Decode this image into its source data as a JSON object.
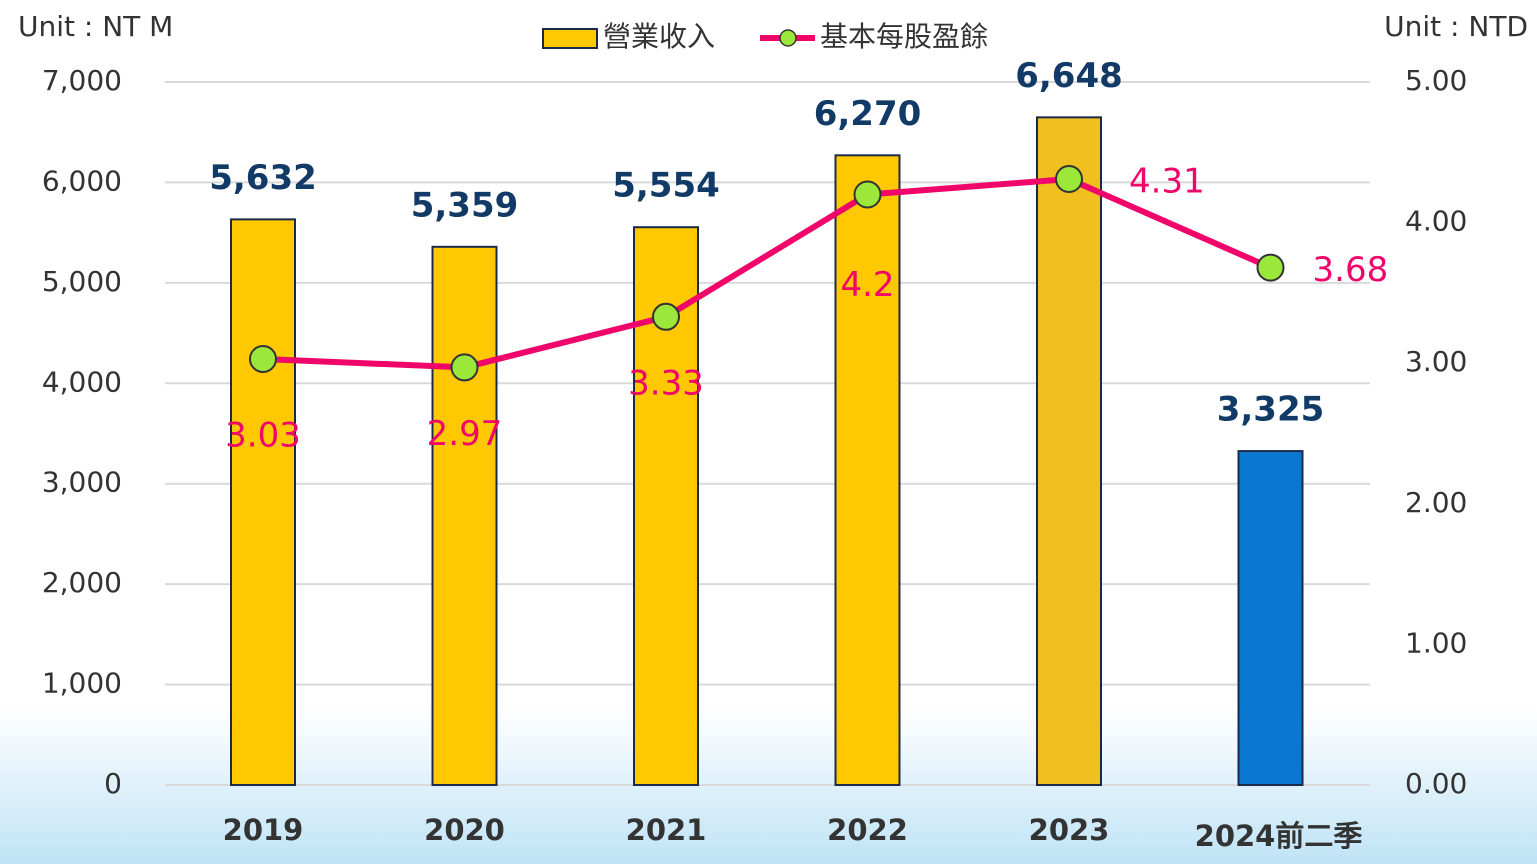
{
  "chart_data": {
    "type": "bar_line",
    "y_label": "Unit : NT M",
    "y2_label": "Unit : NTD",
    "categories": [
      "2019",
      "2020",
      "2021",
      "2022",
      "2023",
      "2024前二季"
    ],
    "series": [
      {
        "name": "營業收入",
        "type": "bar",
        "colors": [
          "#ffc800",
          "#ffc800",
          "#ffc800",
          "#ffc800",
          "#f0c020",
          "#0a78d0"
        ],
        "values": [
          5632,
          5359,
          5554,
          6270,
          6648,
          3325
        ],
        "value_labels": [
          "5,632",
          "5,359",
          "5,554",
          "6,270",
          "6,648",
          "3,325"
        ]
      },
      {
        "name": "基本每股盈餘",
        "type": "line",
        "axis": "y2",
        "color": "#f0066a",
        "marker_color": "#9be83a",
        "values": [
          3.03,
          2.97,
          3.33,
          4.2,
          4.31,
          3.68
        ]
      }
    ],
    "ylim": [
      0,
      7000
    ],
    "yticks": [
      0,
      {
        "value": 1000,
        "label": "1,000"
      },
      {
        "value": 2000,
        "label": "2,000"
      },
      {
        "value": 3000,
        "label": "3,000"
      },
      {
        "value": 4000,
        "label": "4,000"
      },
      {
        "value": 5000,
        "label": "5,000"
      },
      {
        "value": 6000,
        "label": "6,000"
      },
      {
        "value": 7000,
        "label": "7,000"
      }
    ],
    "y2lim": [
      0,
      5
    ],
    "y2ticks": [
      {
        "value": 0,
        "label": "0.00"
      },
      {
        "value": 1,
        "label": "1.00"
      },
      {
        "value": 2,
        "label": "2.00"
      },
      {
        "value": 3,
        "label": "3.00"
      },
      {
        "value": 4,
        "label": "4.00"
      },
      {
        "value": 5,
        "label": "5.00"
      }
    ],
    "grid": true
  }
}
